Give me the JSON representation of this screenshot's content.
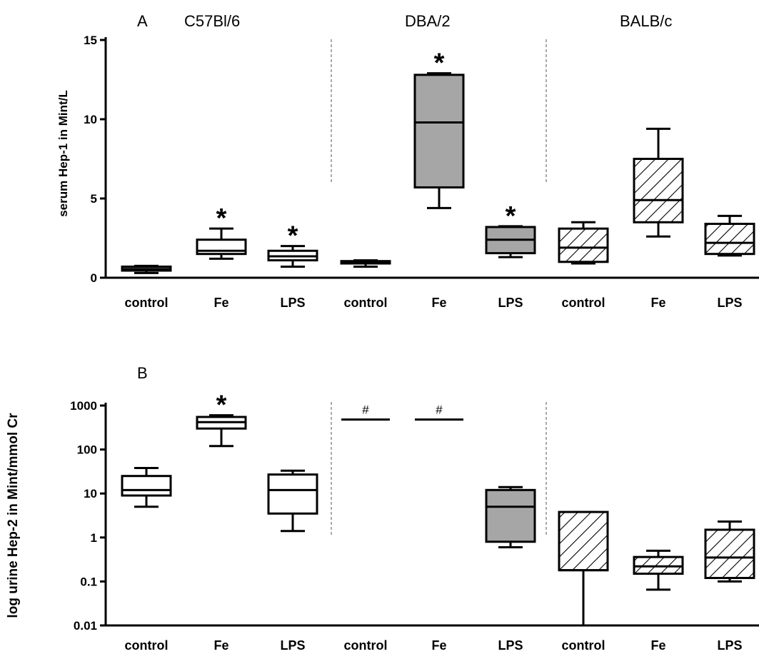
{
  "strains": [
    "C57Bl/6",
    "DBA/2",
    "BALB/c"
  ],
  "chart_data": [
    {
      "type": "box",
      "panel_label": "A",
      "ylabel": "serum Hep-1 in Mint/L",
      "ylim": [
        0,
        15
      ],
      "y_ticks": [
        "0",
        "5",
        "10",
        "15"
      ],
      "categories": [
        "control",
        "Fe",
        "LPS",
        "control",
        "Fe",
        "LPS",
        "control",
        "Fe",
        "LPS"
      ],
      "boxes": [
        {
          "group": "C57Bl/6",
          "label": "control",
          "min": 0.3,
          "q1": 0.45,
          "median": 0.55,
          "q3": 0.7,
          "max": 0.75,
          "star": false
        },
        {
          "group": "C57Bl/6",
          "label": "Fe",
          "min": 1.2,
          "q1": 1.5,
          "median": 1.7,
          "q3": 2.4,
          "max": 3.1,
          "star": true
        },
        {
          "group": "C57Bl/6",
          "label": "LPS",
          "min": 0.7,
          "q1": 1.1,
          "median": 1.35,
          "q3": 1.7,
          "max": 2.0,
          "star": true
        },
        {
          "group": "DBA/2",
          "label": "control",
          "min": 0.7,
          "q1": 0.9,
          "median": 1.0,
          "q3": 1.05,
          "max": 1.1,
          "star": false
        },
        {
          "group": "DBA/2",
          "label": "Fe",
          "min": 4.4,
          "q1": 5.7,
          "median": 9.8,
          "q3": 12.8,
          "max": 12.9,
          "star": true
        },
        {
          "group": "DBA/2",
          "label": "LPS",
          "min": 1.3,
          "q1": 1.55,
          "median": 2.4,
          "q3": 3.2,
          "max": 3.25,
          "star": true
        },
        {
          "group": "BALB/c",
          "label": "control",
          "min": 0.9,
          "q1": 1.0,
          "median": 1.9,
          "q3": 3.1,
          "max": 3.5,
          "star": false
        },
        {
          "group": "BALB/c",
          "label": "Fe",
          "min": 2.6,
          "q1": 3.5,
          "median": 4.9,
          "q3": 7.5,
          "max": 9.4,
          "star": false
        },
        {
          "group": "BALB/c",
          "label": "LPS",
          "min": 1.4,
          "q1": 1.5,
          "median": 2.2,
          "q3": 3.4,
          "max": 3.9,
          "star": false
        }
      ]
    },
    {
      "type": "box",
      "panel_label": "B",
      "ylabel": "log urine Hep-2 in Mint/mmol Cr",
      "yscale": "log",
      "ylim": [
        0.01,
        1000
      ],
      "y_ticks": [
        "0.01",
        "0.1",
        "1",
        "10",
        "100",
        "1000"
      ],
      "categories": [
        "control",
        "Fe",
        "LPS",
        "control",
        "Fe",
        "LPS",
        "control",
        "Fe",
        "LPS"
      ],
      "boxes": [
        {
          "group": "C57Bl/6",
          "label": "control",
          "min": 5,
          "q1": 9,
          "median": 12,
          "q3": 25,
          "max": 38,
          "mark": ""
        },
        {
          "group": "C57Bl/6",
          "label": "Fe",
          "min": 120,
          "q1": 300,
          "median": 420,
          "q3": 550,
          "max": 600,
          "mark": "*"
        },
        {
          "group": "C57Bl/6",
          "label": "LPS",
          "min": 1.4,
          "q1": 3.5,
          "median": 12,
          "q3": 27,
          "max": 33,
          "mark": ""
        },
        {
          "group": "DBA/2",
          "label": "control",
          "min": 480,
          "q1": 480,
          "median": 480,
          "q3": 480,
          "max": 480,
          "mark": "#"
        },
        {
          "group": "DBA/2",
          "label": "Fe",
          "min": 480,
          "q1": 480,
          "median": 480,
          "q3": 480,
          "max": 480,
          "mark": "#"
        },
        {
          "group": "DBA/2",
          "label": "LPS",
          "min": 0.6,
          "q1": 0.8,
          "median": 5,
          "q3": 12,
          "max": 14,
          "mark": ""
        },
        {
          "group": "BALB/c",
          "label": "control",
          "min": 0.01,
          "q1": 0.18,
          "median": 0.18,
          "q3": 3.8,
          "max": 3.8,
          "mark": ""
        },
        {
          "group": "BALB/c",
          "label": "Fe",
          "min": 0.065,
          "q1": 0.15,
          "median": 0.22,
          "q3": 0.36,
          "max": 0.5,
          "mark": ""
        },
        {
          "group": "BALB/c",
          "label": "LPS",
          "min": 0.1,
          "q1": 0.12,
          "median": 0.35,
          "q3": 1.5,
          "max": 2.3,
          "mark": ""
        }
      ]
    }
  ],
  "fills": {
    "C57Bl/6": "#ffffff",
    "DBA/2": "#a6a6a6",
    "BALB/c": "hatch"
  }
}
